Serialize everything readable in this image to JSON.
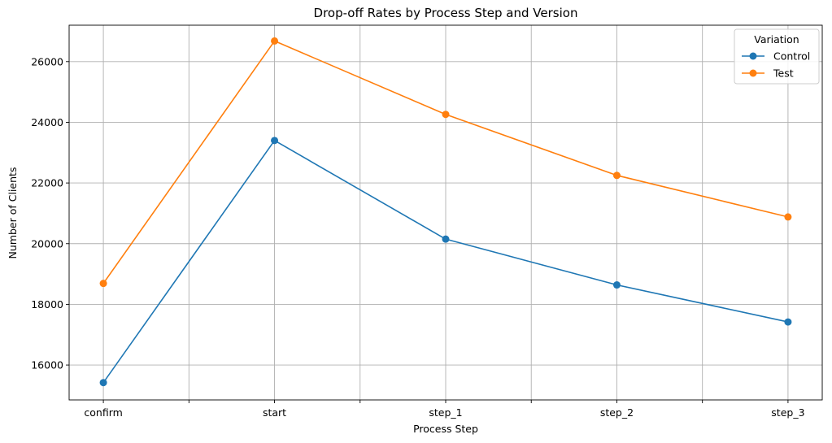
{
  "chart_data": {
    "type": "line",
    "title": "Drop-off Rates by Process Step and Version",
    "xlabel": "Process Step",
    "ylabel": "Number of Clients",
    "categories": [
      "confirm",
      "start",
      "step_1",
      "step_2",
      "step_3"
    ],
    "ylim": [
      14850,
      27200
    ],
    "yticks": [
      16000,
      18000,
      20000,
      22000,
      24000,
      26000
    ],
    "grid": true,
    "legend": {
      "title": "Variation",
      "placement": "top-right"
    },
    "series": [
      {
        "name": "Control",
        "color": "#1f77b4",
        "marker": "circle",
        "values": [
          15420,
          23400,
          20150,
          18640,
          17420
        ]
      },
      {
        "name": "Test",
        "color": "#ff7f0e",
        "marker": "circle",
        "values": [
          18690,
          26680,
          24260,
          22250,
          20880
        ]
      }
    ]
  }
}
